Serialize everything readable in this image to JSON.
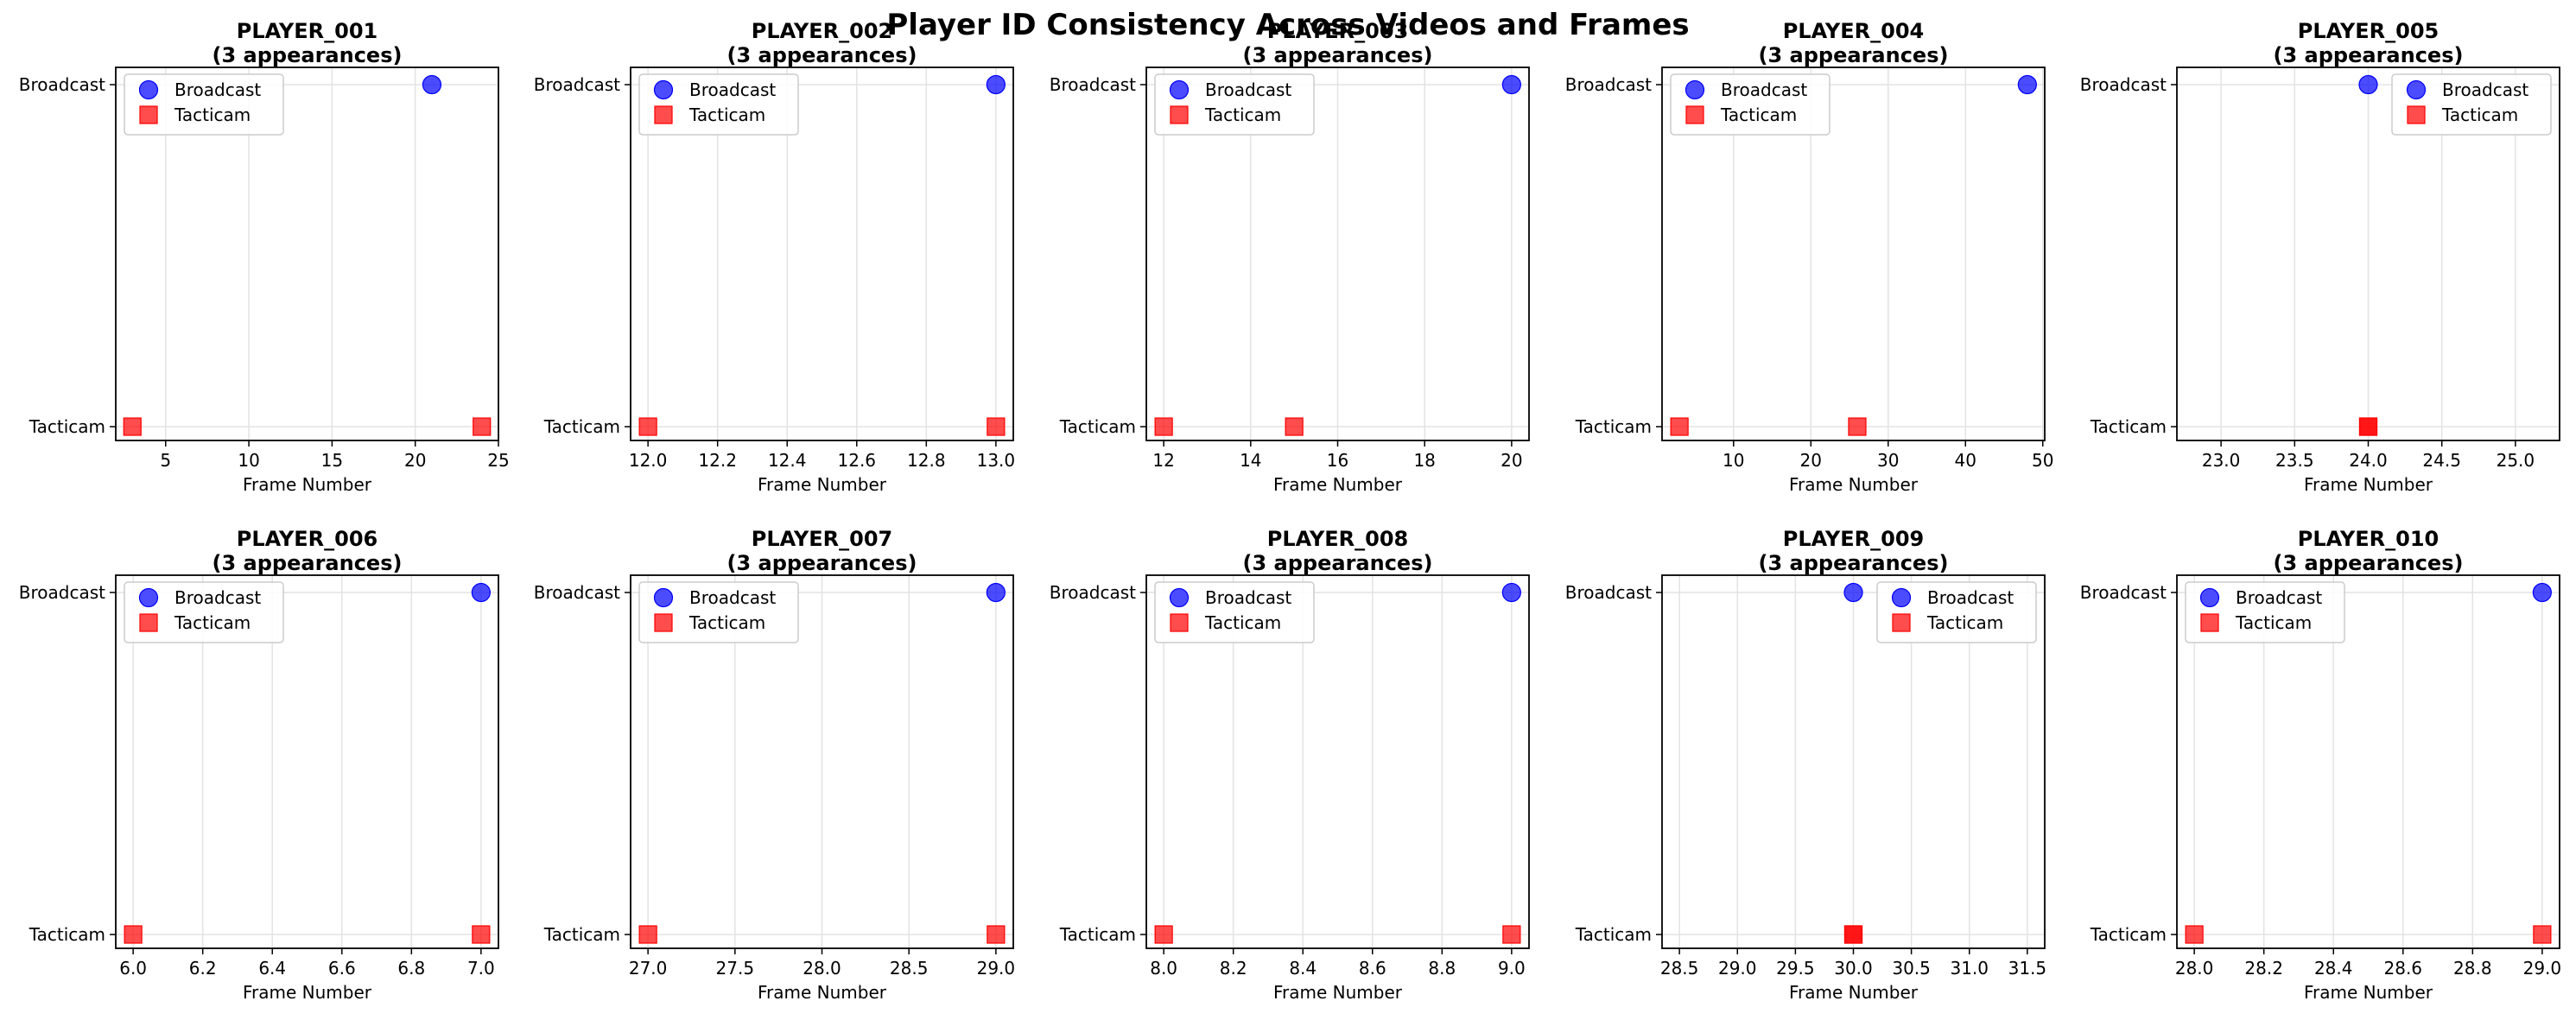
{
  "figure_title": "Player ID Consistency Across Videos and Frames",
  "colors": {
    "broadcast": "#0000ff",
    "tacticam": "#ff0000",
    "grid": "#e3e3e3"
  },
  "chart_data": [
    {
      "type": "scatter",
      "title": "PLAYER_001",
      "subtitle": "(3 appearances)",
      "xlabel": "Frame Number",
      "xlim": [
        2,
        25
      ],
      "xticks": [
        5,
        10,
        15,
        20,
        25
      ],
      "y_categories": [
        "Tacticam",
        "Broadcast"
      ],
      "legend": "upper left",
      "grid": true,
      "series": [
        {
          "name": "Broadcast",
          "marker": "circle",
          "x": [
            21
          ],
          "y": [
            "Broadcast"
          ]
        },
        {
          "name": "Tacticam",
          "marker": "square",
          "x": [
            3,
            24
          ],
          "y": [
            "Tacticam",
            "Tacticam"
          ]
        }
      ]
    },
    {
      "type": "scatter",
      "title": "PLAYER_002",
      "subtitle": "(3 appearances)",
      "xlabel": "Frame Number",
      "xlim": [
        11.95,
        13.05
      ],
      "xticks": [
        12.0,
        12.2,
        12.4,
        12.6,
        12.8,
        13.0
      ],
      "y_categories": [
        "Tacticam",
        "Broadcast"
      ],
      "legend": "upper left",
      "grid": true,
      "series": [
        {
          "name": "Broadcast",
          "marker": "circle",
          "x": [
            13
          ],
          "y": [
            "Broadcast"
          ]
        },
        {
          "name": "Tacticam",
          "marker": "square",
          "x": [
            12,
            13
          ],
          "y": [
            "Tacticam",
            "Tacticam"
          ]
        }
      ]
    },
    {
      "type": "scatter",
      "title": "PLAYER_003",
      "subtitle": "(3 appearances)",
      "xlabel": "Frame Number",
      "xlim": [
        11.6,
        20.4
      ],
      "xticks": [
        12,
        14,
        16,
        18,
        20
      ],
      "y_categories": [
        "Tacticam",
        "Broadcast"
      ],
      "legend": "upper left",
      "grid": true,
      "series": [
        {
          "name": "Broadcast",
          "marker": "circle",
          "x": [
            20
          ],
          "y": [
            "Broadcast"
          ]
        },
        {
          "name": "Tacticam",
          "marker": "square",
          "x": [
            12,
            15
          ],
          "y": [
            "Tacticam",
            "Tacticam"
          ]
        }
      ]
    },
    {
      "type": "scatter",
      "title": "PLAYER_004",
      "subtitle": "(3 appearances)",
      "xlabel": "Frame Number",
      "xlim": [
        0.75,
        50.25
      ],
      "xticks": [
        10,
        20,
        30,
        40,
        50
      ],
      "y_categories": [
        "Tacticam",
        "Broadcast"
      ],
      "legend": "upper left",
      "grid": true,
      "series": [
        {
          "name": "Broadcast",
          "marker": "circle",
          "x": [
            48
          ],
          "y": [
            "Broadcast"
          ]
        },
        {
          "name": "Tacticam",
          "marker": "square",
          "x": [
            3,
            26
          ],
          "y": [
            "Tacticam",
            "Tacticam"
          ]
        }
      ]
    },
    {
      "type": "scatter",
      "title": "PLAYER_005",
      "subtitle": "(3 appearances)",
      "xlabel": "Frame Number",
      "xlim": [
        22.7,
        25.3
      ],
      "xticks": [
        23.0,
        23.5,
        24.0,
        24.5,
        25.0
      ],
      "y_categories": [
        "Tacticam",
        "Broadcast"
      ],
      "legend": "upper right",
      "grid": true,
      "series": [
        {
          "name": "Broadcast",
          "marker": "circle",
          "x": [
            24
          ],
          "y": [
            "Broadcast"
          ]
        },
        {
          "name": "Tacticam",
          "marker": "square",
          "x": [
            24,
            24
          ],
          "y": [
            "Tacticam",
            "Tacticam"
          ]
        }
      ]
    },
    {
      "type": "scatter",
      "title": "PLAYER_006",
      "subtitle": "(3 appearances)",
      "xlabel": "Frame Number",
      "xlim": [
        5.95,
        7.05
      ],
      "xticks": [
        6.0,
        6.2,
        6.4,
        6.6,
        6.8,
        7.0
      ],
      "y_categories": [
        "Tacticam",
        "Broadcast"
      ],
      "legend": "upper left",
      "grid": true,
      "series": [
        {
          "name": "Broadcast",
          "marker": "circle",
          "x": [
            7
          ],
          "y": [
            "Broadcast"
          ]
        },
        {
          "name": "Tacticam",
          "marker": "square",
          "x": [
            6,
            7
          ],
          "y": [
            "Tacticam",
            "Tacticam"
          ]
        }
      ]
    },
    {
      "type": "scatter",
      "title": "PLAYER_007",
      "subtitle": "(3 appearances)",
      "xlabel": "Frame Number",
      "xlim": [
        26.9,
        29.1
      ],
      "xticks": [
        27.0,
        27.5,
        28.0,
        28.5,
        29.0
      ],
      "y_categories": [
        "Tacticam",
        "Broadcast"
      ],
      "legend": "upper left",
      "grid": true,
      "series": [
        {
          "name": "Broadcast",
          "marker": "circle",
          "x": [
            29
          ],
          "y": [
            "Broadcast"
          ]
        },
        {
          "name": "Tacticam",
          "marker": "square",
          "x": [
            27,
            29
          ],
          "y": [
            "Tacticam",
            "Tacticam"
          ]
        }
      ]
    },
    {
      "type": "scatter",
      "title": "PLAYER_008",
      "subtitle": "(3 appearances)",
      "xlabel": "Frame Number",
      "xlim": [
        7.95,
        9.05
      ],
      "xticks": [
        8.0,
        8.2,
        8.4,
        8.6,
        8.8,
        9.0
      ],
      "y_categories": [
        "Tacticam",
        "Broadcast"
      ],
      "legend": "upper left",
      "grid": true,
      "series": [
        {
          "name": "Broadcast",
          "marker": "circle",
          "x": [
            9
          ],
          "y": [
            "Broadcast"
          ]
        },
        {
          "name": "Tacticam",
          "marker": "square",
          "x": [
            8,
            9
          ],
          "y": [
            "Tacticam",
            "Tacticam"
          ]
        }
      ]
    },
    {
      "type": "scatter",
      "title": "PLAYER_009",
      "subtitle": "(3 appearances)",
      "xlabel": "Frame Number",
      "xlim": [
        28.35,
        31.65
      ],
      "xticks": [
        28.5,
        29.0,
        29.5,
        30.0,
        30.5,
        31.0,
        31.5
      ],
      "y_categories": [
        "Tacticam",
        "Broadcast"
      ],
      "legend": "upper right",
      "grid": true,
      "series": [
        {
          "name": "Broadcast",
          "marker": "circle",
          "x": [
            30
          ],
          "y": [
            "Broadcast"
          ]
        },
        {
          "name": "Tacticam",
          "marker": "square",
          "x": [
            30,
            30
          ],
          "y": [
            "Tacticam",
            "Tacticam"
          ]
        }
      ]
    },
    {
      "type": "scatter",
      "title": "PLAYER_010",
      "subtitle": "(3 appearances)",
      "xlabel": "Frame Number",
      "xlim": [
        27.95,
        29.05
      ],
      "xticks": [
        28.0,
        28.2,
        28.4,
        28.6,
        28.8,
        29.0
      ],
      "y_categories": [
        "Tacticam",
        "Broadcast"
      ],
      "legend": "upper left",
      "grid": true,
      "series": [
        {
          "name": "Broadcast",
          "marker": "circle",
          "x": [
            29
          ],
          "y": [
            "Broadcast"
          ]
        },
        {
          "name": "Tacticam",
          "marker": "square",
          "x": [
            28,
            29
          ],
          "y": [
            "Tacticam",
            "Tacticam"
          ]
        }
      ]
    }
  ]
}
